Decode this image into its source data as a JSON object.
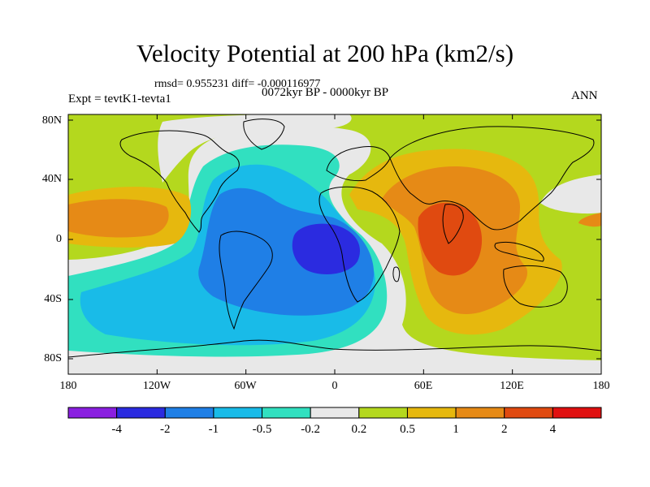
{
  "header": {
    "title": "Velocity Potential at 200 hPa (km2/s)",
    "stats": "rmsd= 0.955231  diff= -0.000116977",
    "period": "0072kyr BP - 0000kyr BP",
    "expt": "Expt = tevtK1-tevta1",
    "season": "ANN"
  },
  "axes": {
    "lat_labels": [
      "80N",
      "40N",
      "0",
      "40S",
      "80S"
    ],
    "lon_labels": [
      "180",
      "120W",
      "60W",
      "0",
      "60E",
      "120E",
      "180"
    ]
  },
  "colorbar": {
    "labels": [
      "-4",
      "-2",
      "-1",
      "-0.5",
      "-0.2",
      "0.2",
      "0.5",
      "1",
      "2",
      "4"
    ],
    "colors": [
      "#8a1fe0",
      "#2b2be0",
      "#1f7fe6",
      "#19bbe8",
      "#31e0c0",
      "#e8e8e8",
      "#b4d81e",
      "#e6b80e",
      "#e68a16",
      "#e04a10",
      "#e01010"
    ]
  }
}
